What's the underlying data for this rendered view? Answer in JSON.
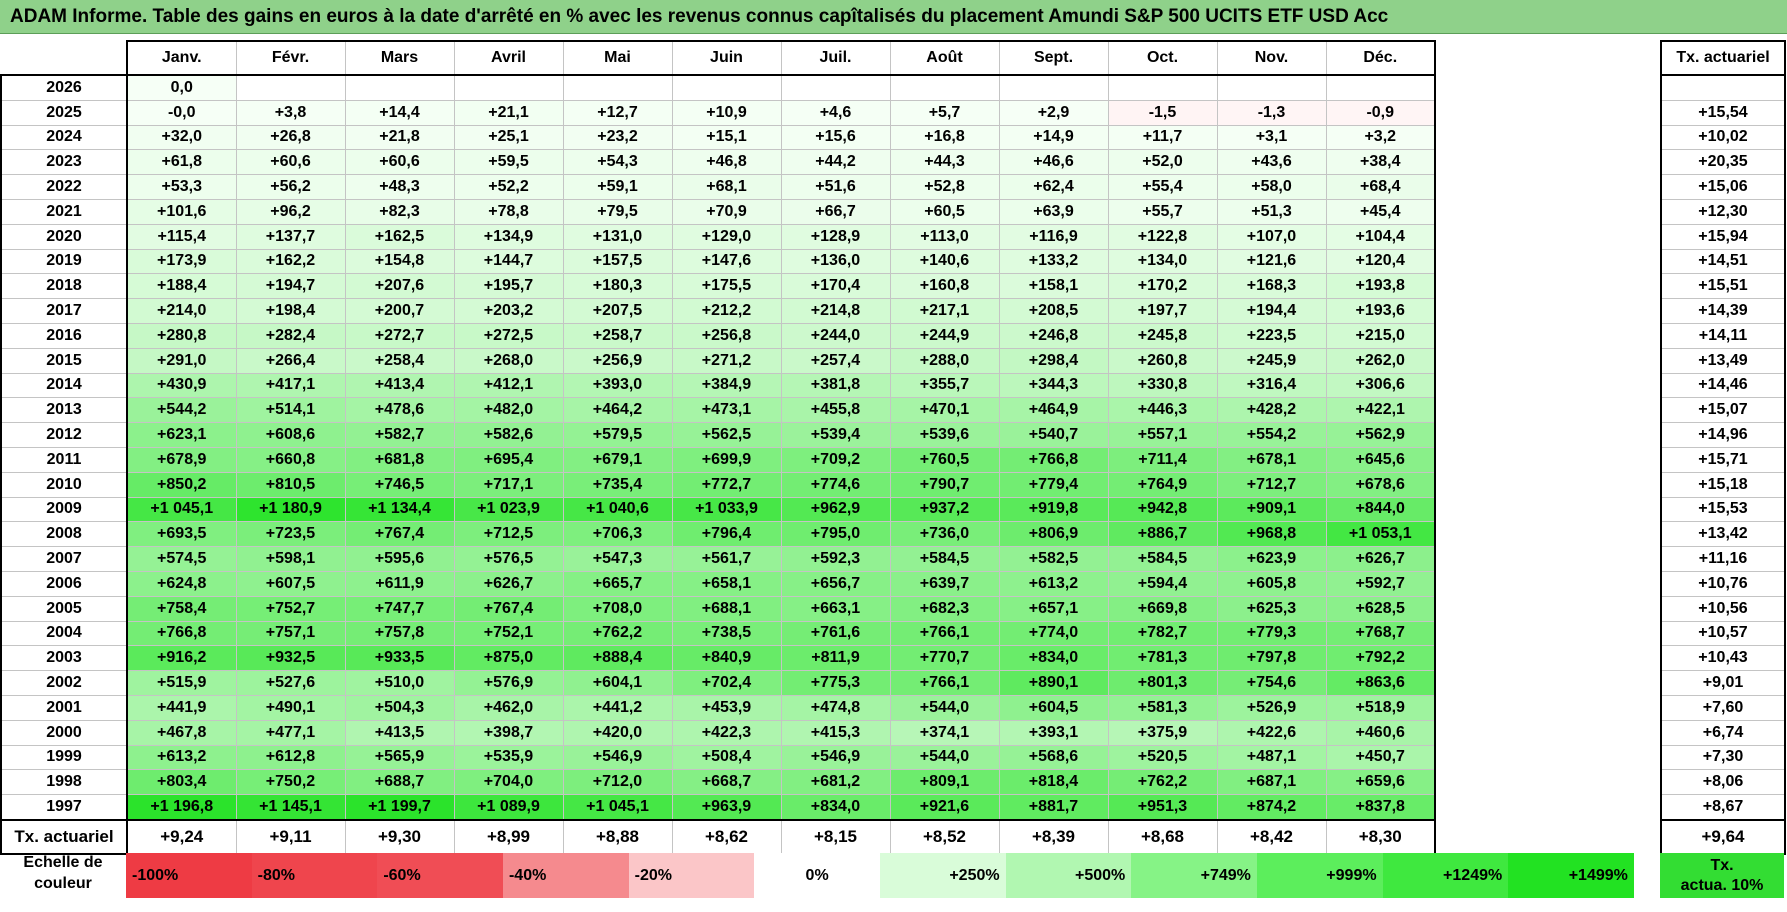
{
  "title": "ADAM Informe. Table des gains en euros à la date d'arrêté en % avec les revenus connus capîtalisés du placement Amundi S&P 500 UCITS ETF USD Acc",
  "chart_data": {
    "type": "table",
    "columns": [
      "Janv.",
      "Févr.",
      "Mars",
      "Avril",
      "Mai",
      "Juin",
      "Juil.",
      "Août",
      "Sept.",
      "Oct.",
      "Nov.",
      "Déc."
    ],
    "side_header": "Tx. actuariel",
    "rows": [
      {
        "year": "2026",
        "values": [
          "0,0",
          "",
          "",
          "",
          "",
          "",
          "",
          "",
          "",
          "",
          "",
          ""
        ],
        "rate": ""
      },
      {
        "year": "2025",
        "values": [
          "-0,0",
          "+3,8",
          "+14,4",
          "+21,1",
          "+12,7",
          "+10,9",
          "+4,6",
          "+5,7",
          "+2,9",
          "-1,5",
          "-1,3",
          "-0,9"
        ],
        "rate": "+15,54"
      },
      {
        "year": "2024",
        "values": [
          "+32,0",
          "+26,8",
          "+21,8",
          "+25,1",
          "+23,2",
          "+15,1",
          "+15,6",
          "+16,8",
          "+14,9",
          "+11,7",
          "+3,1",
          "+3,2"
        ],
        "rate": "+10,02"
      },
      {
        "year": "2023",
        "values": [
          "+61,8",
          "+60,6",
          "+60,6",
          "+59,5",
          "+54,3",
          "+46,8",
          "+44,2",
          "+44,3",
          "+46,6",
          "+52,0",
          "+43,6",
          "+38,4"
        ],
        "rate": "+20,35"
      },
      {
        "year": "2022",
        "values": [
          "+53,3",
          "+56,2",
          "+48,3",
          "+52,2",
          "+59,1",
          "+68,1",
          "+51,6",
          "+52,8",
          "+62,4",
          "+55,4",
          "+58,0",
          "+68,4"
        ],
        "rate": "+15,06"
      },
      {
        "year": "2021",
        "values": [
          "+101,6",
          "+96,2",
          "+82,3",
          "+78,8",
          "+79,5",
          "+70,9",
          "+66,7",
          "+60,5",
          "+63,9",
          "+55,7",
          "+51,3",
          "+45,4"
        ],
        "rate": "+12,30"
      },
      {
        "year": "2020",
        "values": [
          "+115,4",
          "+137,7",
          "+162,5",
          "+134,9",
          "+131,0",
          "+129,0",
          "+128,9",
          "+113,0",
          "+116,9",
          "+122,8",
          "+107,0",
          "+104,4"
        ],
        "rate": "+15,94"
      },
      {
        "year": "2019",
        "values": [
          "+173,9",
          "+162,2",
          "+154,8",
          "+144,7",
          "+157,5",
          "+147,6",
          "+136,0",
          "+140,6",
          "+133,2",
          "+134,0",
          "+121,6",
          "+120,4"
        ],
        "rate": "+14,51"
      },
      {
        "year": "2018",
        "values": [
          "+188,4",
          "+194,7",
          "+207,6",
          "+195,7",
          "+180,3",
          "+175,5",
          "+170,4",
          "+160,8",
          "+158,1",
          "+170,2",
          "+168,3",
          "+193,8"
        ],
        "rate": "+15,51"
      },
      {
        "year": "2017",
        "values": [
          "+214,0",
          "+198,4",
          "+200,7",
          "+203,2",
          "+207,5",
          "+212,2",
          "+214,8",
          "+217,1",
          "+208,5",
          "+197,7",
          "+194,4",
          "+193,6"
        ],
        "rate": "+14,39"
      },
      {
        "year": "2016",
        "values": [
          "+280,8",
          "+282,4",
          "+272,7",
          "+272,5",
          "+258,7",
          "+256,8",
          "+244,0",
          "+244,9",
          "+246,8",
          "+245,8",
          "+223,5",
          "+215,0"
        ],
        "rate": "+14,11"
      },
      {
        "year": "2015",
        "values": [
          "+291,0",
          "+266,4",
          "+258,4",
          "+268,0",
          "+256,9",
          "+271,2",
          "+257,4",
          "+288,0",
          "+298,4",
          "+260,8",
          "+245,9",
          "+262,0"
        ],
        "rate": "+13,49"
      },
      {
        "year": "2014",
        "values": [
          "+430,9",
          "+417,1",
          "+413,4",
          "+412,1",
          "+393,0",
          "+384,9",
          "+381,8",
          "+355,7",
          "+344,3",
          "+330,8",
          "+316,4",
          "+306,6"
        ],
        "rate": "+14,46"
      },
      {
        "year": "2013",
        "values": [
          "+544,2",
          "+514,1",
          "+478,6",
          "+482,0",
          "+464,2",
          "+473,1",
          "+455,8",
          "+470,1",
          "+464,9",
          "+446,3",
          "+428,2",
          "+422,1"
        ],
        "rate": "+15,07"
      },
      {
        "year": "2012",
        "values": [
          "+623,1",
          "+608,6",
          "+582,7",
          "+582,6",
          "+579,5",
          "+562,5",
          "+539,4",
          "+539,6",
          "+540,7",
          "+557,1",
          "+554,2",
          "+562,9"
        ],
        "rate": "+14,96"
      },
      {
        "year": "2011",
        "values": [
          "+678,9",
          "+660,8",
          "+681,8",
          "+695,4",
          "+679,1",
          "+699,9",
          "+709,2",
          "+760,5",
          "+766,8",
          "+711,4",
          "+678,1",
          "+645,6"
        ],
        "rate": "+15,71"
      },
      {
        "year": "2010",
        "values": [
          "+850,2",
          "+810,5",
          "+746,5",
          "+717,1",
          "+735,4",
          "+772,7",
          "+774,6",
          "+790,7",
          "+779,4",
          "+764,9",
          "+712,7",
          "+678,6"
        ],
        "rate": "+15,18"
      },
      {
        "year": "2009",
        "values": [
          "+1 045,1",
          "+1 180,9",
          "+1 134,4",
          "+1 023,9",
          "+1 040,6",
          "+1 033,9",
          "+962,9",
          "+937,2",
          "+919,8",
          "+942,8",
          "+909,1",
          "+844,0"
        ],
        "rate": "+15,53"
      },
      {
        "year": "2008",
        "values": [
          "+693,5",
          "+723,5",
          "+767,4",
          "+712,5",
          "+706,3",
          "+796,4",
          "+795,0",
          "+736,0",
          "+806,9",
          "+886,7",
          "+968,8",
          "+1 053,1"
        ],
        "rate": "+13,42"
      },
      {
        "year": "2007",
        "values": [
          "+574,5",
          "+598,1",
          "+595,6",
          "+576,5",
          "+547,3",
          "+561,7",
          "+592,3",
          "+584,5",
          "+582,5",
          "+584,5",
          "+623,9",
          "+626,7"
        ],
        "rate": "+11,16"
      },
      {
        "year": "2006",
        "values": [
          "+624,8",
          "+607,5",
          "+611,9",
          "+626,7",
          "+665,7",
          "+658,1",
          "+656,7",
          "+639,7",
          "+613,2",
          "+594,4",
          "+605,8",
          "+592,7"
        ],
        "rate": "+10,76"
      },
      {
        "year": "2005",
        "values": [
          "+758,4",
          "+752,7",
          "+747,7",
          "+767,4",
          "+708,0",
          "+688,1",
          "+663,1",
          "+682,3",
          "+657,1",
          "+669,8",
          "+625,3",
          "+628,5"
        ],
        "rate": "+10,56"
      },
      {
        "year": "2004",
        "values": [
          "+766,8",
          "+757,1",
          "+757,8",
          "+752,1",
          "+762,2",
          "+738,5",
          "+761,6",
          "+766,1",
          "+774,0",
          "+782,7",
          "+779,3",
          "+768,7"
        ],
        "rate": "+10,57"
      },
      {
        "year": "2003",
        "values": [
          "+916,2",
          "+932,5",
          "+933,5",
          "+875,0",
          "+888,4",
          "+840,9",
          "+811,9",
          "+770,7",
          "+834,0",
          "+781,3",
          "+797,8",
          "+792,2"
        ],
        "rate": "+10,43"
      },
      {
        "year": "2002",
        "values": [
          "+515,9",
          "+527,6",
          "+510,0",
          "+576,9",
          "+604,1",
          "+702,4",
          "+775,3",
          "+766,1",
          "+890,1",
          "+801,3",
          "+754,6",
          "+863,6"
        ],
        "rate": "+9,01"
      },
      {
        "year": "2001",
        "values": [
          "+441,9",
          "+490,1",
          "+504,3",
          "+462,0",
          "+441,2",
          "+453,9",
          "+474,8",
          "+544,0",
          "+604,5",
          "+581,3",
          "+526,9",
          "+518,9"
        ],
        "rate": "+7,60"
      },
      {
        "year": "2000",
        "values": [
          "+467,8",
          "+477,1",
          "+413,5",
          "+398,7",
          "+420,0",
          "+422,3",
          "+415,3",
          "+374,1",
          "+393,1",
          "+375,9",
          "+422,6",
          "+460,6"
        ],
        "rate": "+6,74"
      },
      {
        "year": "1999",
        "values": [
          "+613,2",
          "+612,8",
          "+565,9",
          "+535,9",
          "+546,9",
          "+508,4",
          "+546,9",
          "+544,0",
          "+568,6",
          "+520,5",
          "+487,1",
          "+450,7"
        ],
        "rate": "+7,30"
      },
      {
        "year": "1998",
        "values": [
          "+803,4",
          "+750,2",
          "+688,7",
          "+704,0",
          "+712,0",
          "+668,7",
          "+681,2",
          "+809,1",
          "+818,4",
          "+762,2",
          "+687,1",
          "+659,6"
        ],
        "rate": "+8,06"
      },
      {
        "year": "1997",
        "values": [
          "+1 196,8",
          "+1 145,1",
          "+1 199,7",
          "+1 089,9",
          "+1 045,1",
          "+963,9",
          "+834,0",
          "+921,6",
          "+881,7",
          "+951,3",
          "+874,2",
          "+837,8"
        ],
        "rate": "+8,67"
      }
    ],
    "footer": {
      "label": "Tx. actuariel",
      "values": [
        "+9,24",
        "+9,11",
        "+9,30",
        "+8,99",
        "+8,88",
        "+8,62",
        "+8,15",
        "+8,52",
        "+8,39",
        "+8,68",
        "+8,42",
        "+8,30"
      ],
      "rate": "+9,64"
    }
  },
  "legend": {
    "label_line1": "Echelle de",
    "label_line2": "couleur",
    "items": [
      {
        "text": "-100%",
        "color": "#ee3b44",
        "kind": "neg"
      },
      {
        "text": "-80%",
        "color": "#ef454d",
        "kind": "neg"
      },
      {
        "text": "-60%",
        "color": "#f04d55",
        "kind": "neg"
      },
      {
        "text": "-40%",
        "color": "#f58a8e",
        "kind": "neg"
      },
      {
        "text": "-20%",
        "color": "#fbc6c8",
        "kind": "neg"
      },
      {
        "text": "0%",
        "color": "#ffffff",
        "kind": "zero"
      },
      {
        "text": "+250%",
        "color": "#d9fcd9",
        "kind": "pos"
      },
      {
        "text": "+500%",
        "color": "#b1f7b1",
        "kind": "pos"
      },
      {
        "text": "+749%",
        "color": "#86f386",
        "kind": "pos"
      },
      {
        "text": "+999%",
        "color": "#5cee5c",
        "kind": "pos"
      },
      {
        "text": "+1249%",
        "color": "#3fe83f",
        "kind": "pos"
      },
      {
        "text": "+1499%",
        "color": "#22e222",
        "kind": "pos"
      }
    ],
    "tx_line1": "Tx.",
    "tx_line2": "actua. 10%",
    "tx_color": "#33dd33"
  }
}
